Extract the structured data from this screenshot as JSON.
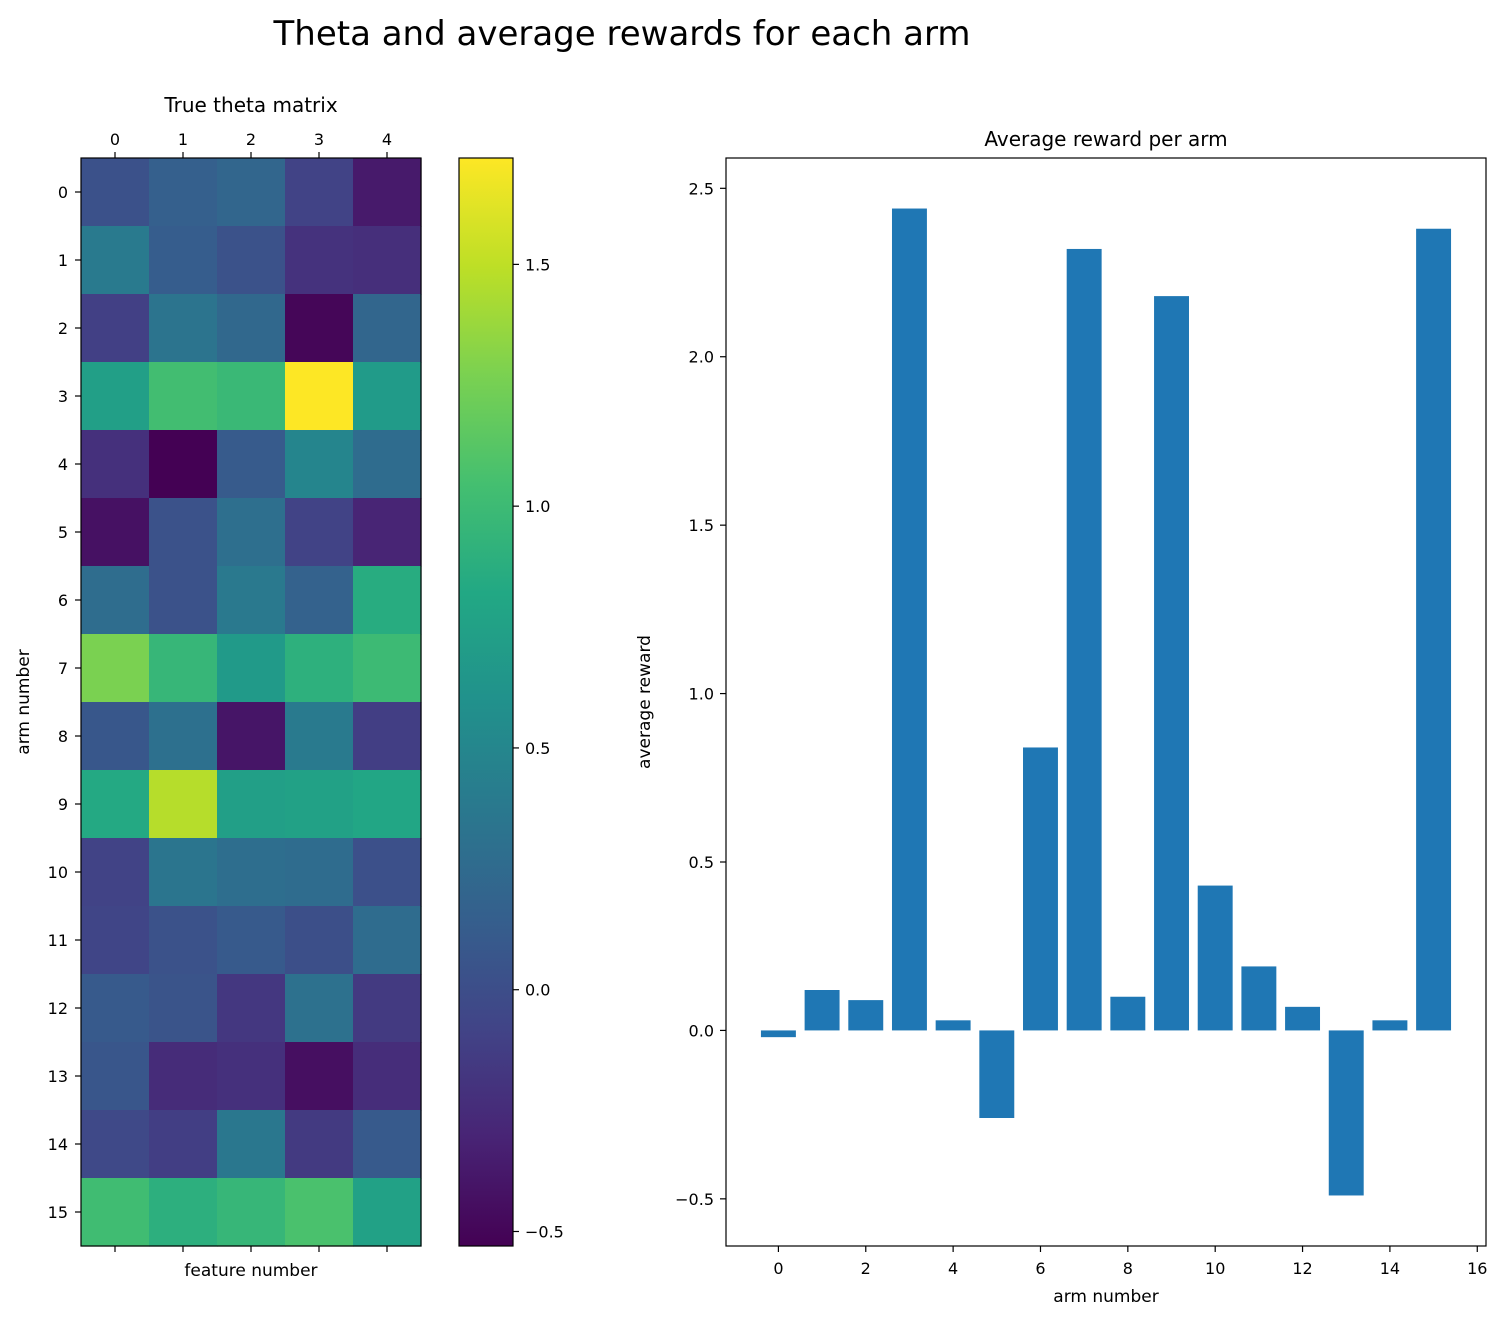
{
  "suptitle": "Theta and average rewards for each arm",
  "chart_data": [
    {
      "type": "heatmap",
      "title": "True theta matrix",
      "xlabel": "feature number",
      "ylabel": "arm number",
      "x_ticks": [
        "0",
        "1",
        "2",
        "3",
        "4"
      ],
      "y_ticks": [
        "0",
        "1",
        "2",
        "3",
        "4",
        "5",
        "6",
        "7",
        "8",
        "9",
        "10",
        "11",
        "12",
        "13",
        "14",
        "15"
      ],
      "colormap": "viridis",
      "vmin": -0.53,
      "vmax": 1.72,
      "colorbar_ticks": [
        1.5,
        1.0,
        0.5,
        0.0,
        -0.5
      ],
      "values": [
        [
          0.03,
          0.15,
          0.21,
          -0.09,
          -0.37
        ],
        [
          0.39,
          0.13,
          0.04,
          -0.21,
          -0.23
        ],
        [
          -0.11,
          0.33,
          0.23,
          -0.5,
          0.21
        ],
        [
          0.73,
          1.03,
          0.98,
          1.72,
          0.69
        ],
        [
          -0.22,
          -0.53,
          0.11,
          0.49,
          0.26
        ],
        [
          -0.43,
          0.04,
          0.29,
          -0.09,
          -0.3
        ],
        [
          0.27,
          0.04,
          0.38,
          0.17,
          0.86
        ],
        [
          1.27,
          0.96,
          0.68,
          0.9,
          1.0
        ],
        [
          0.08,
          0.3,
          -0.4,
          0.39,
          -0.12
        ],
        [
          0.83,
          1.47,
          0.73,
          0.75,
          0.8
        ],
        [
          -0.09,
          0.34,
          0.28,
          0.26,
          0.02
        ],
        [
          -0.07,
          0.04,
          0.1,
          0.01,
          0.26
        ],
        [
          0.1,
          0.05,
          -0.17,
          0.31,
          -0.15
        ],
        [
          0.07,
          -0.25,
          -0.22,
          -0.44,
          -0.24
        ],
        [
          -0.04,
          -0.12,
          0.36,
          -0.15,
          0.1
        ],
        [
          1.02,
          0.89,
          0.96,
          1.07,
          0.75
        ]
      ]
    },
    {
      "type": "bar",
      "title": "Average reward per arm",
      "xlabel": "arm number",
      "ylabel": "average reward",
      "categories": [
        0,
        1,
        2,
        3,
        4,
        5,
        6,
        7,
        8,
        9,
        10,
        11,
        12,
        13,
        14,
        15
      ],
      "values": [
        -0.02,
        0.12,
        0.09,
        2.44,
        0.03,
        -0.26,
        0.84,
        2.32,
        0.1,
        2.18,
        0.43,
        0.19,
        0.07,
        -0.49,
        0.03,
        2.38
      ],
      "xlim": [
        -1.2,
        16.2
      ],
      "ylim": [
        -0.64,
        2.59
      ],
      "x_ticks": [
        "0",
        "2",
        "4",
        "6",
        "8",
        "10",
        "12",
        "14",
        "16"
      ],
      "y_ticks": [
        "2.5",
        "2.0",
        "1.5",
        "1.0",
        "0.5",
        "0.0",
        "−0.5"
      ],
      "bar_color": "#1f77b4"
    }
  ]
}
